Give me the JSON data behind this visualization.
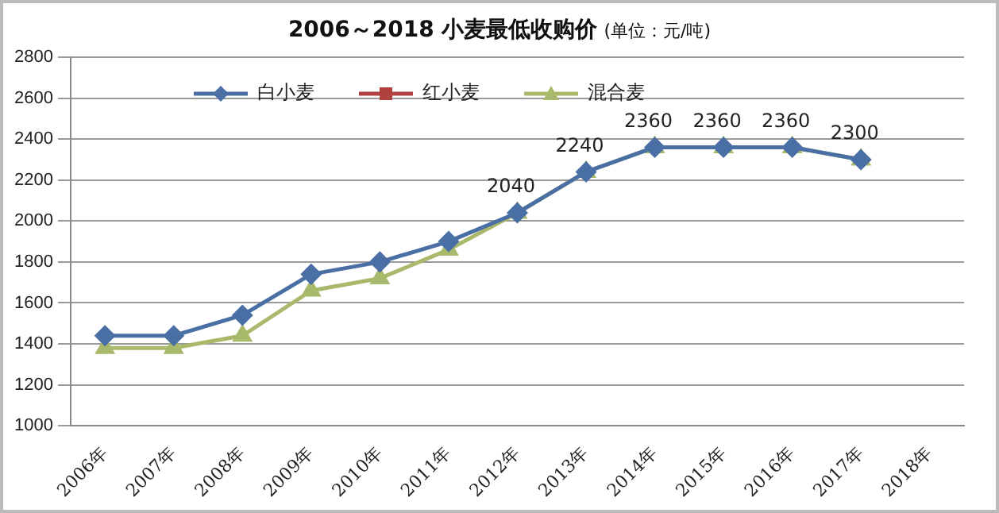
{
  "chart_data": {
    "type": "line",
    "title": "2006～2018  小麦最低收购价",
    "subtitle": "(单位：元/吨)",
    "categories": [
      "2006年",
      "2007年",
      "2008年",
      "2009年",
      "2010年",
      "2011年",
      "2012年",
      "2013年",
      "2014年",
      "2015年",
      "2016年",
      "2017年",
      "2018年"
    ],
    "series": [
      {
        "name": "白小麦",
        "color": "#4a6fa5",
        "marker": "diamond",
        "values": [
          1440,
          1440,
          1540,
          1740,
          1800,
          1900,
          2040,
          2240,
          2360,
          2360,
          2360,
          2300,
          null
        ]
      },
      {
        "name": "红小麦",
        "color": "#b0413e",
        "marker": "square",
        "values": [
          null,
          null,
          null,
          null,
          null,
          null,
          null,
          null,
          null,
          null,
          null,
          null,
          null
        ]
      },
      {
        "name": "混合麦",
        "color": "#a9b96c",
        "marker": "triangle",
        "values": [
          1380,
          1380,
          1440,
          1660,
          1720,
          1860,
          2040,
          2240,
          2360,
          2360,
          2360,
          2300,
          null
        ],
        "value_labels": [
          null,
          null,
          null,
          null,
          null,
          null,
          "2040",
          "2240",
          "2360",
          "2360",
          "2360",
          "2300",
          null
        ]
      }
    ],
    "ylim": [
      1000,
      2800
    ],
    "yticks": [
      1000,
      1200,
      1400,
      1600,
      1800,
      2000,
      2200,
      2400,
      2600,
      2800
    ],
    "grid": "y",
    "legend": "top left"
  }
}
